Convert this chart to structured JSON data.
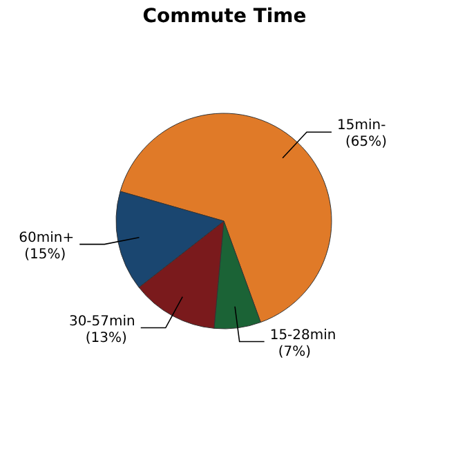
{
  "chart_data": {
    "type": "pie",
    "title": "Commute Time",
    "categories": [
      "15min-",
      "15-28min",
      "30-57min",
      "60min+"
    ],
    "values": [
      65,
      7,
      13,
      15
    ],
    "value_labels": [
      "(65%)",
      "(7%)",
      "(13%)",
      "(15%)"
    ],
    "colors": [
      "#e07a28",
      "#1b6336",
      "#7a1a1c",
      "#1a4670"
    ]
  }
}
